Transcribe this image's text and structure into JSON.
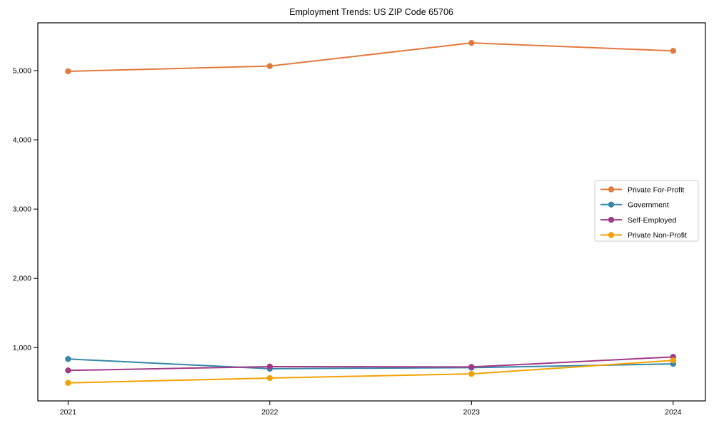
{
  "figure": {
    "background": "#ffffff",
    "spine_color": "#000000",
    "tick_color": "#000000",
    "legend_border_color": "#cccccc",
    "legend_background": "#ffffff"
  },
  "chart_data": {
    "type": "line",
    "title": "Employment Trends: US ZIP Code 65706",
    "xlabel": "",
    "ylabel": "",
    "x": [
      2021,
      2022,
      2023,
      2024
    ],
    "x_tick_labels": [
      "2021",
      "2022",
      "2023",
      "2024"
    ],
    "y_ticks": [
      1000,
      2000,
      3000,
      4000,
      5000
    ],
    "y_tick_labels": [
      "1,000",
      "2,000",
      "3,000",
      "4,000",
      "5,000"
    ],
    "xlim": [
      2020.85,
      2024.16
    ],
    "ylim": [
      230,
      5690
    ],
    "grid": false,
    "marker": "circle",
    "legend_position": "middle-right",
    "series": [
      {
        "name": "Private For-Profit",
        "color": "#E2793E",
        "values": [
          4990,
          5065,
          5400,
          5285
        ]
      },
      {
        "name": "Government",
        "color": "#3587A8",
        "values": [
          835,
          695,
          710,
          765
        ]
      },
      {
        "name": "Self-Employed",
        "color": "#A03A87",
        "values": [
          670,
          725,
          720,
          865
        ]
      },
      {
        "name": "Private Non-Profit",
        "color": "#F2A104",
        "values": [
          490,
          560,
          620,
          815
        ]
      }
    ]
  }
}
